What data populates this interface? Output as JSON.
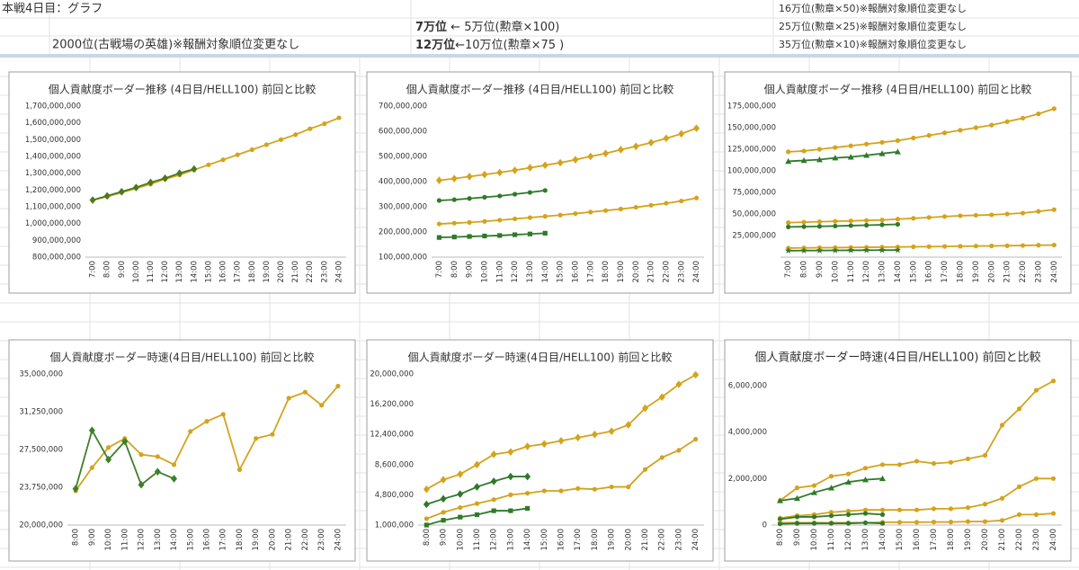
{
  "sheet": {
    "title": "本戦4日目：グラフ",
    "hero_note": "2000位(古戦場の英雄)※報酬対象順位変更なし",
    "rank_notes": [
      {
        "bold": "7万位",
        "text": " ← 5万位(勲章×100)"
      },
      {
        "bold": "12万位",
        "text": "←10万位(勲章×75 )"
      }
    ],
    "side_notes": [
      "16万位(勲章×50)※報酬対象順位変更なし",
      "25万位(勲章×25)※報酬対象順位変更なし",
      "35万位(勲章×10)※報酬対象順位変更なし"
    ]
  },
  "chart_data": [
    {
      "type": "line",
      "title": "個人貢献度ボーダー推移 (4日目/HELL100) 前回と比較",
      "categories": [
        "7:00",
        "8:00",
        "9:00",
        "10:00",
        "11:00",
        "12:00",
        "13:00",
        "14:00",
        "15:00",
        "16:00",
        "17:00",
        "18:00",
        "19:00",
        "20:00",
        "21:00",
        "22:00",
        "23:00",
        "24:00"
      ],
      "ylim": [
        800000000,
        1700000000
      ],
      "yticks": [
        {
          "value": 800000000,
          "label": "800,000,000"
        },
        {
          "value": 900000000,
          "label": "900,000,000"
        },
        {
          "value": 1000000000,
          "label": "1,000,000,000"
        },
        {
          "value": 1100000000,
          "label": "1,100,000,000"
        },
        {
          "value": 1200000000,
          "label": "1,200,000,000"
        },
        {
          "value": 1300000000,
          "label": "1,300,000,000"
        },
        {
          "value": 1400000000,
          "label": "1,400,000,000"
        },
        {
          "value": 1500000000,
          "label": "1,500,000,000"
        },
        {
          "value": 1600000000,
          "label": "1,600,000,000"
        },
        {
          "value": 1700000000,
          "label": "1,700,000,000"
        }
      ],
      "grid": false,
      "series": [
        {
          "color": "#d4a31c",
          "marker": "circle",
          "values": [
            1140000000,
            1160000000,
            1185000000,
            1210000000,
            1235000000,
            1265000000,
            1290000000,
            1320000000,
            1350000000,
            1380000000,
            1410000000,
            1440000000,
            1470000000,
            1500000000,
            1530000000,
            1565000000,
            1595000000,
            1630000000
          ]
        },
        {
          "color": "#4a7a1e",
          "marker": "diamond",
          "values": [
            1140000000,
            1165000000,
            1190000000,
            1215000000,
            1245000000,
            1270000000,
            1300000000,
            1325000000,
            null,
            null,
            null,
            null,
            null,
            null,
            null,
            null,
            null,
            null
          ]
        }
      ]
    },
    {
      "type": "line",
      "title": "個人貢献度ボーダー推移 (4日目/HELL100) 前回と比較",
      "categories": [
        "7:00",
        "8:00",
        "9:00",
        "10:00",
        "11:00",
        "12:00",
        "13:00",
        "14:00",
        "15:00",
        "16:00",
        "17:00",
        "18:00",
        "19:00",
        "20:00",
        "21:00",
        "22:00",
        "23:00",
        "24:00"
      ],
      "ylim": [
        100000000,
        700000000
      ],
      "yticks": [
        {
          "value": 100000000,
          "label": "100,000,000"
        },
        {
          "value": 200000000,
          "label": "200,000,000"
        },
        {
          "value": 300000000,
          "label": "300,000,000"
        },
        {
          "value": 400000000,
          "label": "400,000,000"
        },
        {
          "value": 500000000,
          "label": "500,000,000"
        },
        {
          "value": 600000000,
          "label": "600,000,000"
        },
        {
          "value": 700000000,
          "label": "700,000,000"
        }
      ],
      "grid": false,
      "series": [
        {
          "color": "#d4a31c",
          "marker": "diamond",
          "values": [
            405000000,
            412000000,
            420000000,
            428000000,
            436000000,
            445000000,
            455000000,
            465000000,
            475000000,
            487000000,
            500000000,
            512000000,
            527000000,
            540000000,
            555000000,
            572000000,
            590000000,
            612000000
          ]
        },
        {
          "color": "#2f7a2a",
          "marker": "circle",
          "values": [
            325000000,
            328000000,
            333000000,
            338000000,
            343000000,
            350000000,
            357000000,
            365000000,
            null,
            null,
            null,
            null,
            null,
            null,
            null,
            null,
            null,
            null
          ]
        },
        {
          "color": "#d4a31c",
          "marker": "circle",
          "values": [
            232000000,
            235000000,
            238000000,
            242000000,
            247000000,
            252000000,
            257000000,
            262000000,
            267000000,
            273000000,
            279000000,
            285000000,
            291000000,
            298000000,
            306000000,
            314000000,
            323000000,
            335000000
          ]
        },
        {
          "color": "#2f7a2a",
          "marker": "square",
          "values": [
            178000000,
            180000000,
            182000000,
            184000000,
            186000000,
            189000000,
            192000000,
            195000000,
            null,
            null,
            null,
            null,
            null,
            null,
            null,
            null,
            null,
            null
          ]
        }
      ]
    },
    {
      "type": "line",
      "title": "個人貢献度ボーダー推移 (4日目/HELL100) 前回と比較",
      "categories": [
        "7:00",
        "8:00",
        "9:00",
        "10:00",
        "11:00",
        "12:00",
        "13:00",
        "14:00",
        "15:00",
        "16:00",
        "17:00",
        "18:00",
        "19:00",
        "20:00",
        "21:00",
        "22:00",
        "23:00",
        "24:00"
      ],
      "ylim": [
        0,
        175000000
      ],
      "yticks": [
        {
          "value": 25000000,
          "label": "25,000,000"
        },
        {
          "value": 50000000,
          "label": "50,000,000"
        },
        {
          "value": 75000000,
          "label": "75,000,000"
        },
        {
          "value": 100000000,
          "label": "100,000,000"
        },
        {
          "value": 125000000,
          "label": "125,000,000"
        },
        {
          "value": 150000000,
          "label": "150,000,000"
        },
        {
          "value": 175000000,
          "label": "175,000,000"
        }
      ],
      "grid": false,
      "series": [
        {
          "color": "#d4a31c",
          "marker": "circle",
          "values": [
            122000000,
            123000000,
            125000000,
            127000000,
            129000000,
            131000000,
            133000000,
            135000000,
            138000000,
            141000000,
            144000000,
            147000000,
            150000000,
            153000000,
            157000000,
            161000000,
            166000000,
            172000000
          ]
        },
        {
          "color": "#2f7a2a",
          "marker": "triangle",
          "values": [
            111000000,
            112000000,
            113000000,
            115000000,
            116000000,
            118000000,
            120000000,
            122000000,
            null,
            null,
            null,
            null,
            null,
            null,
            null,
            null,
            null,
            null
          ]
        },
        {
          "color": "#d4a31c",
          "marker": "circle",
          "values": [
            40000000,
            40500000,
            41000000,
            41500000,
            42000000,
            42500000,
            43000000,
            44000000,
            45000000,
            46000000,
            47000000,
            48000000,
            48500000,
            49000000,
            50000000,
            51000000,
            53000000,
            55000000
          ]
        },
        {
          "color": "#2f7a2a",
          "marker": "circle",
          "values": [
            35000000,
            35300000,
            35700000,
            36000000,
            36500000,
            37000000,
            37500000,
            38000000,
            null,
            null,
            null,
            null,
            null,
            null,
            null,
            null,
            null,
            null
          ]
        },
        {
          "color": "#d4a31c",
          "marker": "circle",
          "values": [
            10500000,
            10700000,
            10900000,
            11000000,
            11200000,
            11400000,
            11600000,
            11800000,
            12000000,
            12200000,
            12400000,
            12600000,
            12800000,
            13000000,
            13200000,
            13500000,
            13800000,
            14000000
          ]
        },
        {
          "color": "#2f7a2a",
          "marker": "star",
          "values": [
            7500000,
            7600000,
            7700000,
            7800000,
            7900000,
            8000000,
            8100000,
            8200000,
            null,
            null,
            null,
            null,
            null,
            null,
            null,
            null,
            null,
            null
          ]
        }
      ]
    },
    {
      "type": "line",
      "title": "個人貢献度ボーダー時速(4日目/HELL100) 前回と比較",
      "categories": [
        "8:00",
        "9:00",
        "10:00",
        "11:00",
        "12:00",
        "13:00",
        "14:00",
        "15:00",
        "16:00",
        "17:00",
        "18:00",
        "19:00",
        "20:00",
        "21:00",
        "22:00",
        "23:00",
        "24:00"
      ],
      "ylim": [
        20000000,
        35000000
      ],
      "yticks": [
        {
          "value": 20000000,
          "label": "20,000,000"
        },
        {
          "value": 23750000,
          "label": "23,750,000"
        },
        {
          "value": 27500000,
          "label": "27,500,000"
        },
        {
          "value": 31250000,
          "label": "31,250,000"
        },
        {
          "value": 35000000,
          "label": "35,000,000"
        }
      ],
      "grid": false,
      "series": [
        {
          "color": "#d4a31c",
          "marker": "circle",
          "values": [
            23400000,
            25700000,
            27700000,
            28600000,
            27000000,
            26800000,
            26000000,
            29300000,
            30300000,
            31000000,
            25500000,
            28600000,
            29000000,
            32600000,
            33200000,
            31900000,
            33800000
          ]
        },
        {
          "color": "#3f7f2a",
          "marker": "diamond",
          "values": [
            23600000,
            29400000,
            26500000,
            28300000,
            24000000,
            25300000,
            24600000,
            null,
            null,
            null,
            null,
            null,
            null,
            null,
            null,
            null,
            null
          ]
        }
      ]
    },
    {
      "type": "line",
      "title": "個人貢献度ボーダー時速(4日目/HELL100) 前回と比較",
      "categories": [
        "8:00",
        "9:00",
        "10:00",
        "11:00",
        "12:00",
        "13:00",
        "14:00",
        "15:00",
        "16:00",
        "17:00",
        "18:00",
        "19:00",
        "20:00",
        "21:00",
        "22:00",
        "23:00",
        "24:00"
      ],
      "ylim": [
        1000000,
        20000000
      ],
      "yticks": [
        {
          "value": 1000000,
          "label": "1,000,000"
        },
        {
          "value": 4800000,
          "label": "4,800,000"
        },
        {
          "value": 8600000,
          "label": "8,600,000"
        },
        {
          "value": 12400000,
          "label": "12,400,000"
        },
        {
          "value": 16200000,
          "label": "16,200,000"
        },
        {
          "value": 20000000,
          "label": "20,000,000"
        }
      ],
      "grid": false,
      "series": [
        {
          "color": "#d4a31c",
          "marker": "diamond",
          "values": [
            5500000,
            6700000,
            7400000,
            8600000,
            9900000,
            10200000,
            10900000,
            11200000,
            11600000,
            12000000,
            12400000,
            12800000,
            13600000,
            15700000,
            17100000,
            18700000,
            19900000
          ]
        },
        {
          "color": "#2f7a2a",
          "marker": "diamond",
          "values": [
            3600000,
            4300000,
            4900000,
            5800000,
            6500000,
            7100000,
            7100000,
            null,
            null,
            null,
            null,
            null,
            null,
            null,
            null,
            null,
            null
          ]
        },
        {
          "color": "#d4a31c",
          "marker": "circle",
          "values": [
            1800000,
            2600000,
            3200000,
            3700000,
            4200000,
            4800000,
            5000000,
            5300000,
            5300000,
            5600000,
            5500000,
            5800000,
            5800000,
            8000000,
            9500000,
            10400000,
            11800000
          ]
        },
        {
          "color": "#2f7a2a",
          "marker": "square",
          "values": [
            1000000,
            1600000,
            2000000,
            2300000,
            2800000,
            2800000,
            3100000,
            null,
            null,
            null,
            null,
            null,
            null,
            null,
            null,
            null,
            null
          ]
        }
      ]
    },
    {
      "type": "line",
      "title": "個人貢献度ボーダー時速(4日目/HELL100) 前回と比較",
      "categories": [
        "8:00",
        "9:00",
        "10:00",
        "11:00",
        "12:00",
        "13:00",
        "14:00",
        "15:00",
        "16:00",
        "17:00",
        "18:00",
        "19:00",
        "20:00",
        "21:00",
        "22:00",
        "23:00",
        "24:00"
      ],
      "ylim": [
        0,
        6500000
      ],
      "yticks": [
        0,
        {
          "value": 2000000,
          "label": "2,000,000"
        },
        {
          "value": 4000000,
          "label": "4,000,000"
        },
        {
          "value": 6000000,
          "label": "6,000,000"
        }
      ],
      "grid": false,
      "series": [
        {
          "color": "#d4a31c",
          "marker": "circle",
          "values": [
            1050000,
            1600000,
            1700000,
            2100000,
            2200000,
            2450000,
            2600000,
            2600000,
            2750000,
            2650000,
            2700000,
            2850000,
            3000000,
            4300000,
            5000000,
            5800000,
            6200000
          ]
        },
        {
          "color": "#2f7a2a",
          "marker": "triangle",
          "values": [
            1050000,
            1150000,
            1400000,
            1600000,
            1850000,
            1950000,
            2000000,
            null,
            null,
            null,
            null,
            null,
            null,
            null,
            null,
            null,
            null
          ]
        },
        {
          "color": "#d4a31c",
          "marker": "circle",
          "values": [
            300000,
            400000,
            450000,
            550000,
            600000,
            650000,
            650000,
            650000,
            650000,
            700000,
            700000,
            750000,
            900000,
            1150000,
            1650000,
            2000000,
            2000000
          ]
        },
        {
          "color": "#2f7a2a",
          "marker": "circle",
          "values": [
            250000,
            350000,
            350000,
            400000,
            450000,
            500000,
            450000,
            null,
            null,
            null,
            null,
            null,
            null,
            null,
            null,
            null,
            null
          ]
        },
        {
          "color": "#d4a31c",
          "marker": "circle",
          "values": [
            100000,
            100000,
            100000,
            100000,
            100000,
            100000,
            120000,
            120000,
            120000,
            130000,
            130000,
            150000,
            150000,
            200000,
            450000,
            450000,
            500000
          ]
        },
        {
          "color": "#2f7a2a",
          "marker": "circle",
          "values": [
            50000,
            70000,
            70000,
            70000,
            70000,
            100000,
            70000,
            null,
            null,
            null,
            null,
            null,
            null,
            null,
            null,
            null,
            null
          ]
        }
      ]
    }
  ]
}
